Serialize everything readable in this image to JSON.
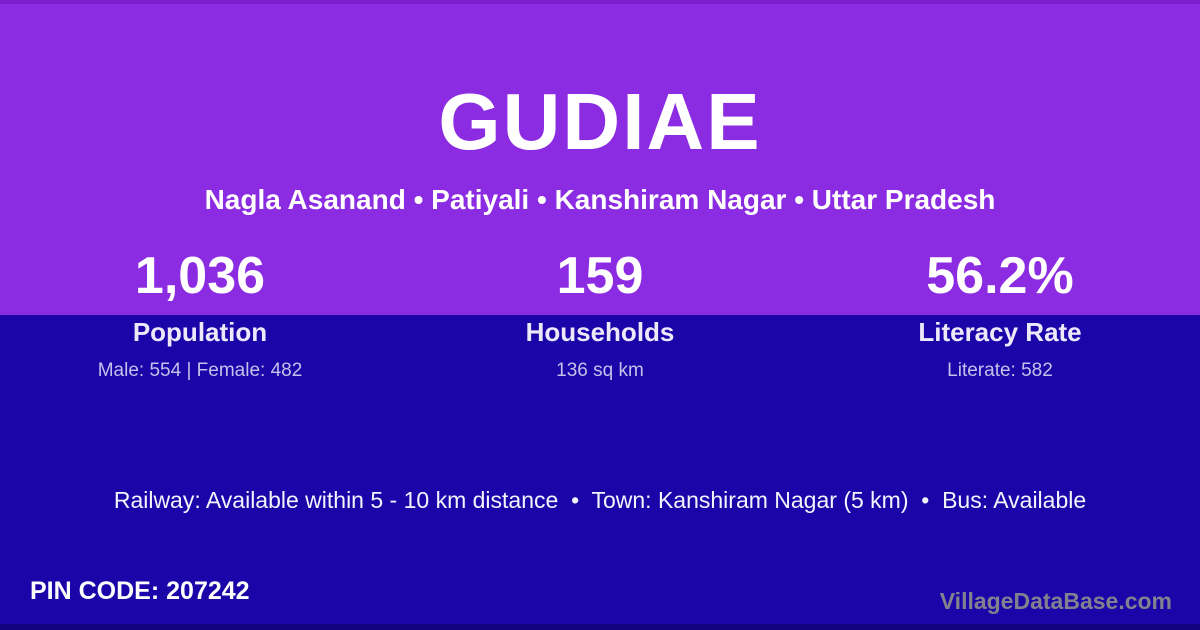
{
  "colors": {
    "top_background": "#8B2BE2",
    "bottom_background": "#1C05A8",
    "top_edge_strip": "#7A1FC9",
    "bottom_edge_strip": "#12027E",
    "primary_text": "#FFFFFF",
    "muted_text": "#C6C0EA",
    "watermark_text": "#83818F"
  },
  "header": {
    "title": "GUDIAE",
    "subtitle": "Nagla Asanand • Patiyali • Kanshiram Nagar • Uttar Pradesh"
  },
  "stats": [
    {
      "value": "1,036",
      "label": "Population",
      "detail": "Male: 554 | Female: 482"
    },
    {
      "value": "159",
      "label": "Households",
      "detail": "136 sq km"
    },
    {
      "value": "56.2%",
      "label": "Literacy Rate",
      "detail": "Literate: 582"
    }
  ],
  "transport": {
    "line": "Railway: Available within 5 - 10 km distance  •  Town: Kanshiram Nagar (5 km)  •  Bus: Available"
  },
  "footer": {
    "pin_label": "PIN CODE:",
    "pin_value": "207242",
    "watermark": "VillageDataBase.com"
  }
}
